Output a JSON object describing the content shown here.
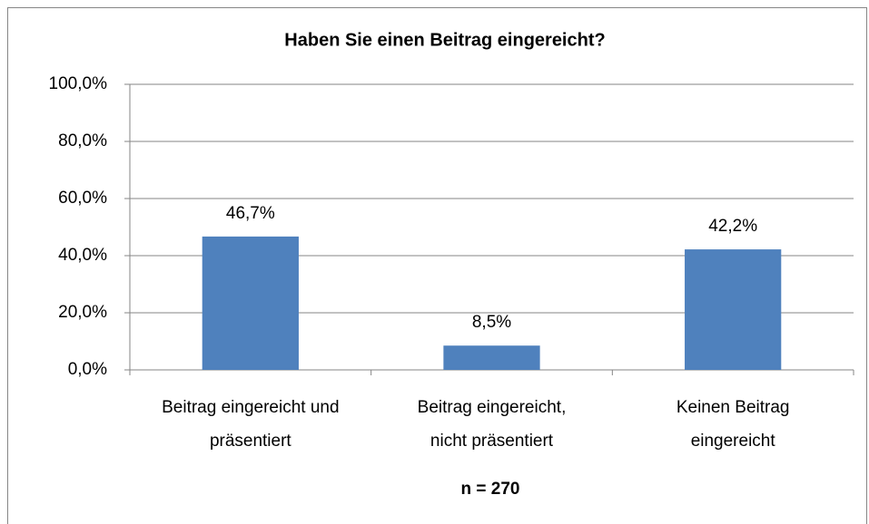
{
  "chart_data": {
    "type": "bar",
    "title": "Haben Sie einen Beitrag eingereicht?",
    "x_label": "n = 270",
    "categories": [
      "Beitrag eingereicht und\npräsentiert",
      "Beitrag eingereicht,\nnicht präsentiert",
      "Keinen Beitrag\neingereicht"
    ],
    "values": [
      46.7,
      8.5,
      42.2
    ],
    "value_labels": [
      "46,7%",
      "8,5%",
      "42,2%"
    ],
    "color": "#4f81bd",
    "ylim": [
      0,
      100
    ],
    "yticks": [
      {
        "value": 0,
        "label": "0,0%"
      },
      {
        "value": 20,
        "label": "20,0%"
      },
      {
        "value": 40,
        "label": "40,0%"
      },
      {
        "value": 60,
        "label": "60,0%"
      },
      {
        "value": 80,
        "label": "80,0%"
      },
      {
        "value": 100,
        "label": "100,0%"
      }
    ],
    "grid": true
  }
}
